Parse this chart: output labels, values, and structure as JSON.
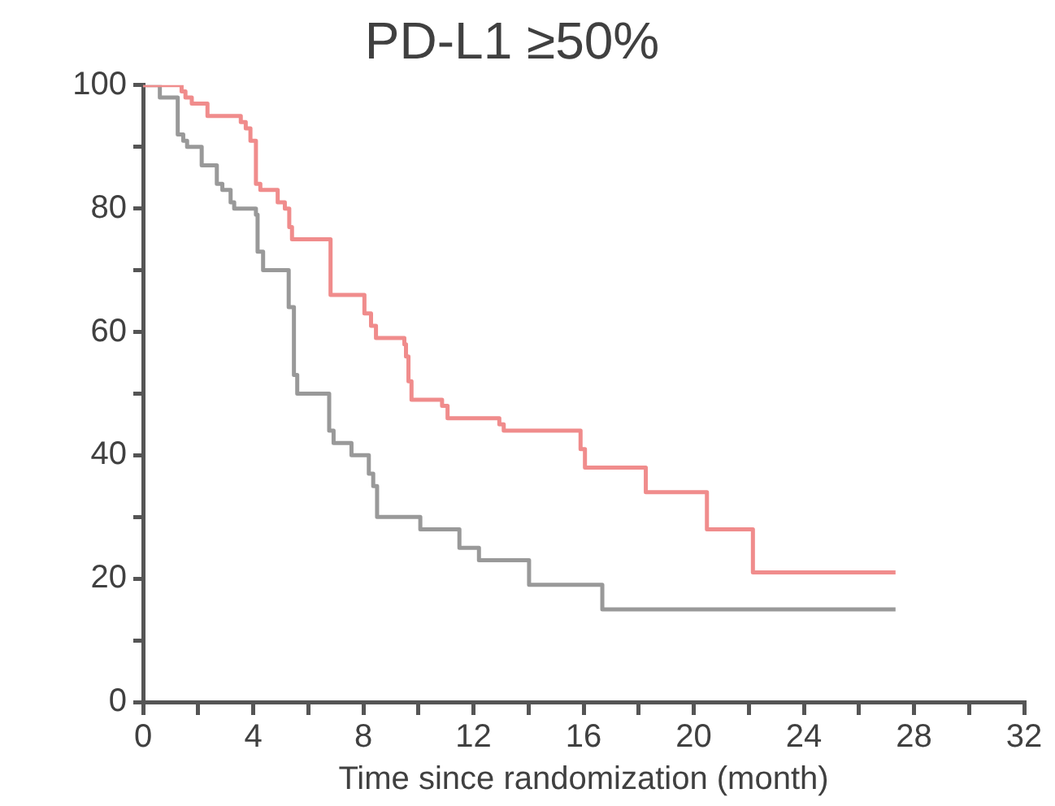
{
  "chart_data": {
    "type": "step",
    "title": "PD-L1 ≥50%",
    "xlabel": "Time since randomization (month)",
    "xlim": [
      0,
      32
    ],
    "xticks": [
      0,
      {
        "value": 2,
        "label": null
      },
      4,
      {
        "value": 6,
        "label": null
      },
      8,
      {
        "value": 10,
        "label": null
      },
      12,
      {
        "value": 14,
        "label": null
      },
      16,
      {
        "value": 18,
        "label": null
      },
      20,
      {
        "value": 22,
        "label": null
      },
      24,
      {
        "value": 26,
        "label": null
      },
      28,
      {
        "value": 30,
        "label": null
      },
      32
    ],
    "ylim": [
      0,
      100
    ],
    "yticks": [
      0,
      {
        "value": 10,
        "label": null
      },
      20,
      {
        "value": 30,
        "label": null
      },
      40,
      {
        "value": 50,
        "label": null
      },
      60,
      {
        "value": 70,
        "label": null
      },
      80,
      {
        "value": 90,
        "label": null
      },
      100
    ],
    "grid": false,
    "legend": false,
    "marker": "none",
    "line_style": "solid",
    "series": [
      {
        "color": "#f08c8c",
        "x": [
          0,
          1.4,
          1.54,
          1.77,
          2.34,
          3.55,
          3.73,
          3.9,
          4.1,
          4.26,
          4.89,
          5.15,
          5.31,
          5.41,
          6.81,
          8.04,
          8.28,
          8.46,
          9.49,
          9.55,
          9.64,
          9.75,
          10.86,
          11.06,
          12.94,
          13.1,
          15.89,
          16.05,
          18.26,
          20.48,
          22.15,
          27.33
        ],
        "values": [
          100,
          99,
          98,
          97,
          95,
          94,
          93,
          91,
          84,
          83,
          81,
          80,
          77,
          75,
          66,
          63,
          61,
          59,
          58,
          56,
          52,
          49,
          48,
          46,
          45,
          44,
          41,
          38,
          34,
          28,
          21,
          21
        ]
      },
      {
        "color": "#999999",
        "x": [
          0,
          0.61,
          1.26,
          1.46,
          1.6,
          2.13,
          2.68,
          2.88,
          3.18,
          3.31,
          4.1,
          4.16,
          4.36,
          5.29,
          5.48,
          5.6,
          6.76,
          6.92,
          7.57,
          8.2,
          8.36,
          8.5,
          10.07,
          11.49,
          12.2,
          14.02,
          16.68,
          27.33
        ],
        "values": [
          100,
          98,
          92,
          91,
          90,
          87,
          84,
          83,
          81,
          80,
          79,
          73,
          70,
          64,
          53,
          50,
          44,
          42,
          40,
          37,
          35,
          30,
          28,
          25,
          23,
          19,
          15,
          15
        ]
      }
    ]
  }
}
